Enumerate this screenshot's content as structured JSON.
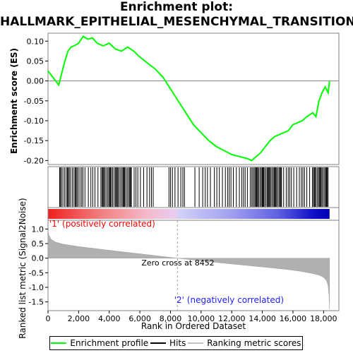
{
  "title_line1": "Enrichment plot:",
  "title_line2": "HALLMARK_EPITHELIAL_MESENCHYMAL_TRANSITION",
  "legend": [
    {
      "label": "Enrichment profile",
      "color": "#00ff00"
    },
    {
      "label": "Hits",
      "color": "#000000"
    },
    {
      "label": "Ranking metric scores",
      "color": "#c0c0c0"
    }
  ],
  "chart_data": {
    "type": "line",
    "es_panel": {
      "ylabel": "Enrichment score (ES)",
      "ylim": [
        -0.21,
        0.12
      ],
      "yticks": [
        "0.10",
        "0.05",
        "0.00",
        "-0.05",
        "-0.10",
        "-0.15",
        "-0.20"
      ],
      "ytick_values": [
        0.1,
        0.05,
        0.0,
        -0.05,
        -0.1,
        -0.15,
        -0.2
      ],
      "series": [
        {
          "name": "Enrichment profile",
          "color": "#00ff00",
          "x": [
            0,
            300,
            700,
            900,
            1100,
            1300,
            1500,
            1800,
            2000,
            2300,
            2600,
            2900,
            3200,
            3600,
            4000,
            4400,
            4800,
            5200,
            5600,
            6000,
            6500,
            7000,
            7500,
            8000,
            8500,
            9000,
            9500,
            10000,
            10500,
            11000,
            11500,
            12000,
            12500,
            13000,
            13300,
            13600,
            13900,
            14200,
            14500,
            14800,
            15100,
            15400,
            15700,
            16000,
            16300,
            16600,
            16900,
            17100,
            17300,
            17500,
            17700,
            17900,
            18100,
            18300,
            18390
          ],
          "values": [
            0.025,
            0.01,
            -0.01,
            0.02,
            0.05,
            0.075,
            0.085,
            0.09,
            0.095,
            0.112,
            0.105,
            0.108,
            0.095,
            0.088,
            0.095,
            0.08,
            0.075,
            0.085,
            0.075,
            0.06,
            0.045,
            0.03,
            0.01,
            -0.02,
            -0.05,
            -0.08,
            -0.11,
            -0.13,
            -0.15,
            -0.165,
            -0.175,
            -0.185,
            -0.19,
            -0.195,
            -0.2,
            -0.19,
            -0.18,
            -0.165,
            -0.15,
            -0.14,
            -0.135,
            -0.13,
            -0.125,
            -0.11,
            -0.105,
            -0.1,
            -0.09,
            -0.085,
            -0.08,
            -0.09,
            -0.05,
            -0.03,
            -0.015,
            -0.03,
            0.0
          ]
        }
      ]
    },
    "hits": [
      {
        "from": 700,
        "to": 2300,
        "n": 19
      },
      {
        "from": 2300,
        "to": 3400,
        "n": 6
      },
      {
        "from": 3400,
        "to": 5500,
        "n": 29
      },
      {
        "from": 5500,
        "to": 7000,
        "n": 9
      },
      {
        "from": 7800,
        "to": 9000,
        "n": 8
      },
      {
        "from": 9500,
        "to": 11000,
        "n": 7
      },
      {
        "from": 11000,
        "to": 13300,
        "n": 15
      },
      {
        "from": 13300,
        "to": 15300,
        "n": 31
      },
      {
        "from": 15300,
        "to": 17300,
        "n": 14
      },
      {
        "from": 17300,
        "to": 18350,
        "n": 16
      }
    ],
    "heatmap": {
      "stops": [
        {
          "x": 0,
          "color": "#ee2020"
        },
        {
          "x": 3500,
          "color": "#f28080"
        },
        {
          "x": 6400,
          "color": "#f5b8c8"
        },
        {
          "x": 8300,
          "color": "#e8ccf0"
        },
        {
          "x": 8600,
          "color": "#d0d0f8"
        },
        {
          "x": 12000,
          "color": "#a0a0f0"
        },
        {
          "x": 15000,
          "color": "#6060e0"
        },
        {
          "x": 17300,
          "color": "#1010c8"
        },
        {
          "x": 18390,
          "color": "#0000b8"
        }
      ],
      "label_pos": "'1' (positively correlated)",
      "label_neg": "'2' (negatively correlated)"
    },
    "metric_panel": {
      "ylabel": "Ranked list metric (Signal2Noise)",
      "ylim": [
        -1.8,
        1.3
      ],
      "yticks": [
        "1.0",
        "0.5",
        "0.0",
        "-0.5",
        "-1.0",
        "-1.5"
      ],
      "ytick_values": [
        1.0,
        0.5,
        0.0,
        -0.5,
        -1.0,
        -1.5
      ],
      "zero_cross": 8452,
      "zero_cross_label": "Zero cross at 8452",
      "x": [
        0,
        50,
        200,
        500,
        1000,
        2000,
        4000,
        6000,
        8452,
        10000,
        12000,
        14000,
        15500,
        16500,
        17200,
        17700,
        18000,
        18200,
        18300,
        18360,
        18390
      ],
      "values": [
        0.95,
        0.8,
        0.65,
        0.55,
        0.48,
        0.4,
        0.27,
        0.15,
        0.0,
        -0.09,
        -0.2,
        -0.3,
        -0.38,
        -0.45,
        -0.52,
        -0.58,
        -0.66,
        -0.78,
        -0.95,
        -1.3,
        -1.75
      ]
    },
    "xlabel": "Rank in Ordered Dataset",
    "xlim": [
      0,
      19000
    ],
    "xticks": [
      "0",
      "2,000",
      "4,000",
      "6,000",
      "8,000",
      "10,000",
      "12,000",
      "14,000",
      "16,000",
      "18,000"
    ],
    "xtick_values": [
      0,
      2000,
      4000,
      6000,
      8000,
      10000,
      12000,
      14000,
      16000,
      18000
    ]
  }
}
